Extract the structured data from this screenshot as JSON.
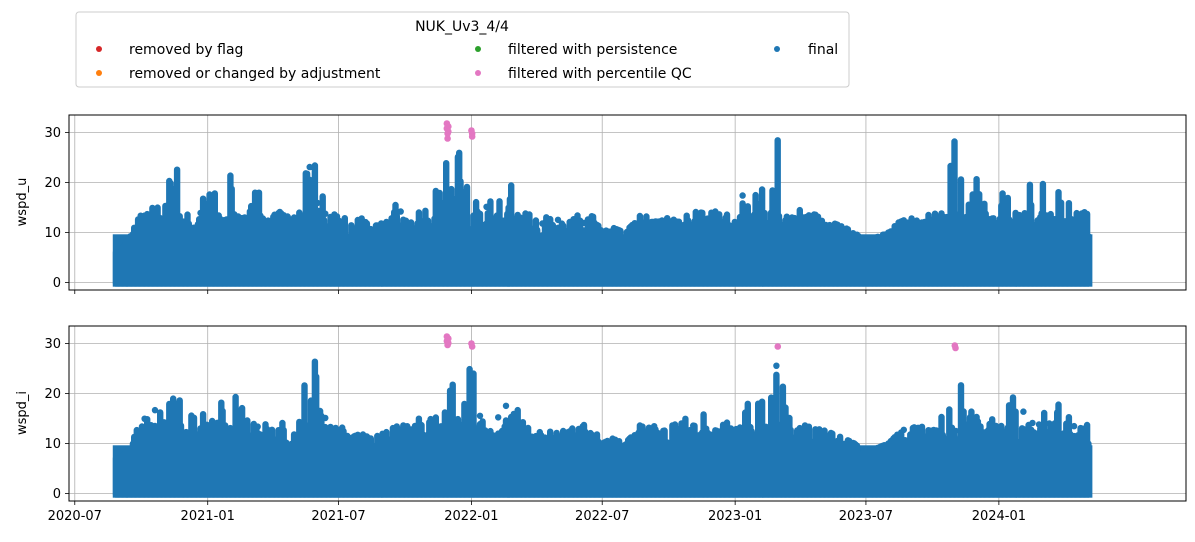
{
  "legend": {
    "title": "NUK_Uv3_4/4",
    "entries": [
      {
        "label": "removed by flag",
        "color": "#d62728"
      },
      {
        "label": "removed or changed by adjustment",
        "color": "#ff7f0e"
      },
      {
        "label": "filtered with persistence",
        "color": "#2ca02c"
      },
      {
        "label": "filtered with percentile QC",
        "color": "#e377c2"
      },
      {
        "label": "final",
        "color": "#1f77b4"
      }
    ]
  },
  "chart_data": [
    {
      "type": "scatter",
      "ylabel": "wspd_u",
      "xlim": [
        "2020-06-23",
        "2024-09-16"
      ],
      "ylim": [
        -1.5,
        33.5
      ],
      "x_ticks": [
        "2020-07",
        "2021-01",
        "2021-07",
        "2022-01",
        "2022-07",
        "2023-01",
        "2023-07",
        "2024-01"
      ],
      "x_tick_labels_visible": false,
      "y_ticks": [
        0,
        10,
        20,
        30
      ],
      "grid": true,
      "data_range": [
        "2020-08-27",
        "2024-05-05"
      ],
      "series": [
        {
          "name": "final",
          "color": "#1f77b4",
          "envelope": [
            [
              "2020-09-01",
              6
            ],
            [
              "2020-09-15",
              9
            ],
            [
              "2020-10-01",
              14
            ],
            [
              "2020-10-15",
              23
            ],
            [
              "2020-11-01",
              16
            ],
            [
              "2020-11-15",
              28
            ],
            [
              "2020-12-01",
              17
            ],
            [
              "2020-12-15",
              19
            ],
            [
              "2021-01-01",
              18
            ],
            [
              "2021-01-15",
              20
            ],
            [
              "2021-02-01",
              24
            ],
            [
              "2021-02-15",
              22
            ],
            [
              "2021-03-01",
              21
            ],
            [
              "2021-03-15",
              18
            ],
            [
              "2021-04-01",
              14
            ],
            [
              "2021-04-15",
              16
            ],
            [
              "2021-05-01",
              19
            ],
            [
              "2021-05-15",
              26
            ],
            [
              "2021-06-01",
              27
            ],
            [
              "2021-06-15",
              14
            ],
            [
              "2021-07-01",
              16
            ],
            [
              "2021-07-15",
              11
            ],
            [
              "2021-08-01",
              13
            ],
            [
              "2021-08-15",
              11
            ],
            [
              "2021-09-01",
              12
            ],
            [
              "2021-09-15",
              18
            ],
            [
              "2021-10-01",
              14
            ],
            [
              "2021-10-15",
              15
            ],
            [
              "2021-11-01",
              16
            ],
            [
              "2021-11-15",
              20
            ],
            [
              "2021-12-01",
              28
            ],
            [
              "2021-12-15",
              26
            ],
            [
              "2022-01-01",
              28
            ],
            [
              "2022-01-15",
              17
            ],
            [
              "2022-02-01",
              16
            ],
            [
              "2022-02-15",
              17
            ],
            [
              "2022-03-01",
              23
            ],
            [
              "2022-03-15",
              22
            ],
            [
              "2022-04-01",
              14
            ],
            [
              "2022-04-15",
              13
            ],
            [
              "2022-05-01",
              12
            ],
            [
              "2022-05-15",
              13
            ],
            [
              "2022-06-01",
              15
            ],
            [
              "2022-06-15",
              14
            ],
            [
              "2022-07-01",
              10
            ],
            [
              "2022-07-15",
              11
            ],
            [
              "2022-08-01",
              10
            ],
            [
              "2022-08-15",
              12
            ],
            [
              "2022-09-01",
              17
            ],
            [
              "2022-09-15",
              12
            ],
            [
              "2022-10-01",
              13
            ],
            [
              "2022-10-15",
              15
            ],
            [
              "2022-11-01",
              16
            ],
            [
              "2022-11-15",
              18
            ],
            [
              "2022-12-01",
              15
            ],
            [
              "2022-12-15",
              14
            ],
            [
              "2023-01-01",
              15
            ],
            [
              "2023-01-15",
              20
            ],
            [
              "2023-02-01",
              18
            ],
            [
              "2023-02-15",
              21
            ],
            [
              "2023-03-01",
              29
            ],
            [
              "2023-03-15",
              17
            ],
            [
              "2023-04-01",
              15
            ],
            [
              "2023-04-15",
              14
            ],
            [
              "2023-05-01",
              13
            ],
            [
              "2023-05-15",
              12
            ],
            [
              "2023-06-01",
              11
            ],
            [
              "2023-06-15",
              10
            ],
            [
              "2023-07-01",
              8
            ],
            [
              "2023-07-15",
              9
            ],
            [
              "2023-08-01",
              10
            ],
            [
              "2023-08-15",
              12
            ],
            [
              "2023-09-01",
              13
            ],
            [
              "2023-09-15",
              14
            ],
            [
              "2023-10-01",
              15
            ],
            [
              "2023-10-15",
              16
            ],
            [
              "2023-11-01",
              29
            ],
            [
              "2023-11-15",
              22
            ],
            [
              "2023-12-01",
              21
            ],
            [
              "2023-12-15",
              19
            ],
            [
              "2024-01-01",
              20
            ],
            [
              "2024-01-15",
              21
            ],
            [
              "2024-02-01",
              18
            ],
            [
              "2024-02-15",
              20
            ],
            [
              "2024-03-01",
              21
            ],
            [
              "2024-03-15",
              20
            ],
            [
              "2024-04-01",
              18
            ],
            [
              "2024-04-15",
              16
            ],
            [
              "2024-05-01",
              16
            ]
          ]
        },
        {
          "name": "filtered with percentile QC",
          "color": "#e377c2",
          "points": [
            [
              "2021-11-28",
              31.8
            ],
            [
              "2021-11-28",
              30.8
            ],
            [
              "2021-11-29",
              29.8
            ],
            [
              "2021-11-29",
              28.8
            ],
            [
              "2021-11-30",
              31.2
            ],
            [
              "2021-11-30",
              30.2
            ],
            [
              "2022-01-01",
              30.4
            ],
            [
              "2022-01-02",
              29.8
            ],
            [
              "2022-01-02",
              29.2
            ]
          ]
        }
      ]
    },
    {
      "type": "scatter",
      "ylabel": "wspd_i",
      "xlim": [
        "2020-06-23",
        "2024-09-16"
      ],
      "ylim": [
        -1.5,
        33.5
      ],
      "x_ticks": [
        "2020-07",
        "2021-01",
        "2021-07",
        "2022-01",
        "2022-07",
        "2023-01",
        "2023-07",
        "2024-01"
      ],
      "x_tick_labels": [
        "2020-07",
        "2021-01",
        "2021-07",
        "2022-01",
        "2022-07",
        "2023-01",
        "2023-07",
        "2024-01"
      ],
      "y_ticks": [
        0,
        10,
        20,
        30
      ],
      "grid": true,
      "data_range": [
        "2020-08-27",
        "2024-05-05"
      ],
      "series": [
        {
          "name": "final",
          "color": "#1f77b4",
          "envelope": [
            [
              "2020-09-01",
              7
            ],
            [
              "2020-09-15",
              9
            ],
            [
              "2020-10-01",
              15
            ],
            [
              "2020-10-15",
              23
            ],
            [
              "2020-11-01",
              16
            ],
            [
              "2020-11-15",
              26
            ],
            [
              "2020-12-01",
              18
            ],
            [
              "2020-12-15",
              19
            ],
            [
              "2021-01-01",
              19
            ],
            [
              "2021-01-15",
              20
            ],
            [
              "2021-02-01",
              22
            ],
            [
              "2021-02-15",
              21
            ],
            [
              "2021-03-01",
              20
            ],
            [
              "2021-03-15",
              17
            ],
            [
              "2021-04-01",
              14
            ],
            [
              "2021-04-15",
              15
            ],
            [
              "2021-05-01",
              18
            ],
            [
              "2021-05-15",
              26
            ],
            [
              "2021-06-01",
              27
            ],
            [
              "2021-06-15",
              14
            ],
            [
              "2021-07-01",
              15
            ],
            [
              "2021-07-15",
              11
            ],
            [
              "2021-08-01",
              12
            ],
            [
              "2021-08-15",
              11
            ],
            [
              "2021-09-01",
              12
            ],
            [
              "2021-09-15",
              18
            ],
            [
              "2021-10-01",
              14
            ],
            [
              "2021-10-15",
              15
            ],
            [
              "2021-11-01",
              16
            ],
            [
              "2021-11-15",
              19
            ],
            [
              "2021-12-01",
              28
            ],
            [
              "2021-12-15",
              25
            ],
            [
              "2022-01-01",
              27
            ],
            [
              "2022-01-15",
              17
            ],
            [
              "2022-02-01",
              15
            ],
            [
              "2022-02-15",
              17
            ],
            [
              "2022-03-01",
              26
            ],
            [
              "2022-03-15",
              21
            ],
            [
              "2022-04-01",
              14
            ],
            [
              "2022-04-15",
              13
            ],
            [
              "2022-05-01",
              12
            ],
            [
              "2022-05-15",
              13
            ],
            [
              "2022-06-01",
              15
            ],
            [
              "2022-06-15",
              14
            ],
            [
              "2022-07-01",
              10
            ],
            [
              "2022-07-15",
              11
            ],
            [
              "2022-08-01",
              10
            ],
            [
              "2022-08-15",
              12
            ],
            [
              "2022-09-01",
              17
            ],
            [
              "2022-09-15",
              12
            ],
            [
              "2022-10-01",
              13
            ],
            [
              "2022-10-15",
              15
            ],
            [
              "2022-11-01",
              16
            ],
            [
              "2022-11-15",
              18
            ],
            [
              "2022-12-01",
              15
            ],
            [
              "2022-12-15",
              14
            ],
            [
              "2023-01-01",
              15
            ],
            [
              "2023-01-15",
              22
            ],
            [
              "2023-02-01",
              18
            ],
            [
              "2023-02-15",
              21
            ],
            [
              "2023-03-01",
              26
            ],
            [
              "2023-03-15",
              17
            ],
            [
              "2023-04-01",
              15
            ],
            [
              "2023-04-15",
              14
            ],
            [
              "2023-05-01",
              13
            ],
            [
              "2023-05-15",
              12
            ],
            [
              "2023-06-01",
              11
            ],
            [
              "2023-06-15",
              10
            ],
            [
              "2023-07-01",
              8
            ],
            [
              "2023-07-15",
              9
            ],
            [
              "2023-08-01",
              10
            ],
            [
              "2023-08-15",
              12
            ],
            [
              "2023-09-01",
              13
            ],
            [
              "2023-09-15",
              14
            ],
            [
              "2023-10-01",
              15
            ],
            [
              "2023-10-15",
              16
            ],
            [
              "2023-11-01",
              28
            ],
            [
              "2023-11-15",
              21
            ],
            [
              "2023-12-01",
              20
            ],
            [
              "2023-12-15",
              18
            ],
            [
              "2024-01-01",
              20
            ],
            [
              "2024-01-15",
              21
            ],
            [
              "2024-02-01",
              18
            ],
            [
              "2024-02-15",
              21
            ],
            [
              "2024-03-01",
              20
            ],
            [
              "2024-03-15",
              20
            ],
            [
              "2024-04-01",
              18
            ],
            [
              "2024-04-15",
              16
            ],
            [
              "2024-05-01",
              16
            ]
          ]
        },
        {
          "name": "filtered with percentile QC",
          "color": "#e377c2",
          "points": [
            [
              "2021-11-28",
              31.4
            ],
            [
              "2021-11-28",
              30.5
            ],
            [
              "2021-11-29",
              29.7
            ],
            [
              "2021-11-30",
              31.0
            ],
            [
              "2021-11-30",
              30.1
            ],
            [
              "2022-01-01",
              30.0
            ],
            [
              "2022-01-02",
              29.4
            ],
            [
              "2023-03-01",
              29.4
            ],
            [
              "2023-11-01",
              29.6
            ],
            [
              "2023-11-02",
              29.1
            ]
          ]
        }
      ]
    }
  ]
}
